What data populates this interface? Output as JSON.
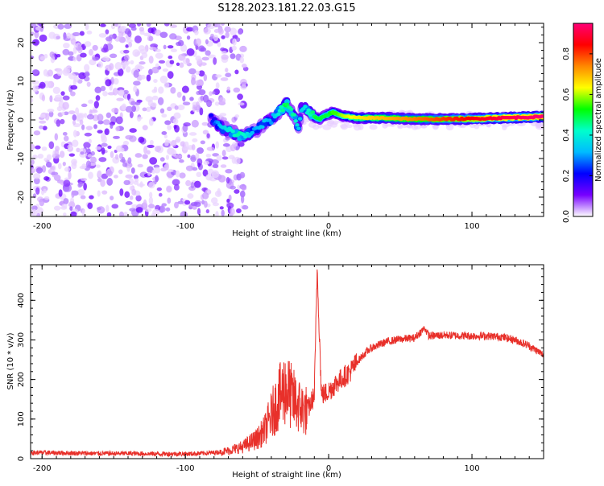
{
  "page_title": "S128.2023.181.22.03.G15",
  "chart_data": [
    {
      "type": "heatmap",
      "xlabel": "Height of straight line (km)",
      "ylabel": "Frequency (Hz)",
      "xlim": [
        -208,
        150
      ],
      "ylim": [
        -25,
        25
      ],
      "xticks": [
        -200,
        -100,
        0,
        100
      ],
      "yticks": [
        -20,
        -10,
        0,
        10,
        20
      ],
      "colorbar": {
        "label": "Normalized spectral amplitude",
        "range": [
          0,
          0.95
        ],
        "ticks": [
          "0.0",
          "0.2",
          "0.4",
          "0.6",
          "0.8"
        ],
        "tick_values": [
          0,
          0.2,
          0.4,
          0.6,
          0.8
        ],
        "colormap": [
          "#ffffff",
          "#7700ff",
          "#0000ff",
          "#00bbff",
          "#00ffcc",
          "#00ff00",
          "#ffff00",
          "#ff8800",
          "#ff0000",
          "#ff0077"
        ]
      },
      "ridge": [
        [
          -82,
          0.5,
          0.2
        ],
        [
          -75,
          -2,
          0.35
        ],
        [
          -68,
          -3,
          0.4
        ],
        [
          -62,
          -4,
          0.45
        ],
        [
          -58,
          -4,
          0.4
        ],
        [
          -52,
          -3,
          0.3
        ],
        [
          -45,
          -1,
          0.35
        ],
        [
          -40,
          0,
          0.3
        ],
        [
          -35,
          2,
          0.4
        ],
        [
          -32,
          3,
          0.45
        ],
        [
          -30,
          4.5,
          0.5
        ],
        [
          -27,
          3,
          0.45
        ],
        [
          -24,
          1,
          0.45
        ],
        [
          -21,
          -2,
          0.35
        ],
        [
          -19,
          3,
          0.35
        ],
        [
          -15,
          2.5,
          0.4
        ],
        [
          -12,
          1.5,
          0.45
        ],
        [
          -9,
          0.5,
          0.5
        ],
        [
          -6,
          0.3,
          0.5
        ],
        [
          -3,
          1,
          0.5
        ],
        [
          0,
          1.5,
          0.5
        ],
        [
          3,
          2,
          0.55
        ],
        [
          6,
          1.5,
          0.55
        ],
        [
          10,
          1,
          0.6
        ],
        [
          20,
          0.5,
          0.65
        ],
        [
          40,
          0.5,
          0.7
        ],
        [
          60,
          0.2,
          0.75
        ],
        [
          80,
          0.2,
          0.8
        ],
        [
          100,
          0.3,
          0.85
        ],
        [
          120,
          0.5,
          0.9
        ],
        [
          150,
          0.8,
          0.95
        ]
      ]
    },
    {
      "type": "line",
      "xlabel": "Height of straight line (km)",
      "ylabel": "SNR (10 * v/v)",
      "xlim": [
        -208,
        150
      ],
      "ylim": [
        0,
        490
      ],
      "xticks": [
        -200,
        -100,
        0,
        100
      ],
      "yticks": [
        0,
        100,
        200,
        300,
        400
      ],
      "color": "#e8302a",
      "series": [
        {
          "x": [
            -208,
            -200,
            -180,
            -160,
            -140,
            -120,
            -100,
            -90,
            -80,
            -70,
            -60,
            -50,
            -45,
            -40,
            -35,
            -30,
            -25,
            -20,
            -15,
            -10,
            -8,
            -5,
            0,
            5,
            10,
            15,
            20,
            25,
            30,
            40,
            50,
            60,
            67,
            70,
            80,
            90,
            100,
            110,
            120,
            130,
            140,
            150
          ],
          "y": [
            15,
            15,
            14,
            13,
            13,
            12,
            12,
            13,
            15,
            20,
            30,
            50,
            70,
            110,
            150,
            180,
            150,
            130,
            120,
            160,
            480,
            160,
            170,
            190,
            205,
            220,
            245,
            265,
            280,
            295,
            302,
            305,
            330,
            310,
            312,
            311,
            310,
            310,
            308,
            300,
            285,
            262
          ]
        }
      ]
    }
  ]
}
